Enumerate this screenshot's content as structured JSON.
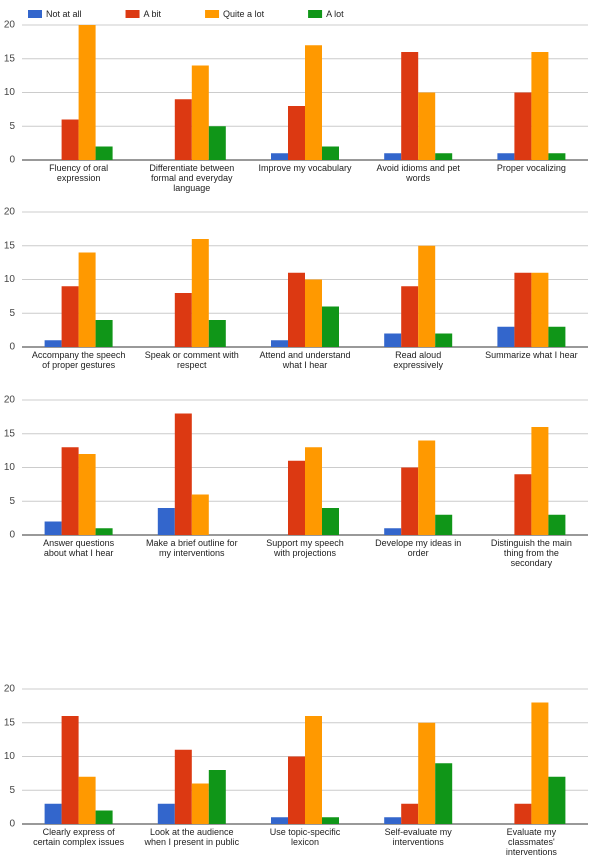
{
  "chart_data": [
    {
      "type": "bar",
      "categories": [
        "Fluency of oral expression",
        "Differentiate between formal and everyday language",
        "Improve my vocabulary",
        "Avoid idioms and pet words",
        "Proper vocalizing"
      ],
      "series": [
        {
          "name": "Not at all",
          "color": "#3366cc",
          "values": [
            0,
            0,
            1,
            1,
            1
          ]
        },
        {
          "name": "A bit",
          "color": "#dc3912",
          "values": [
            6,
            9,
            8,
            16,
            10
          ]
        },
        {
          "name": "Quite a lot",
          "color": "#ff9900",
          "values": [
            20,
            14,
            17,
            10,
            16
          ]
        },
        {
          "name": "A lot",
          "color": "#109618",
          "values": [
            2,
            5,
            2,
            1,
            1
          ]
        }
      ],
      "ylim": [
        0,
        20
      ],
      "yticks": [
        0,
        5,
        10,
        15,
        20
      ],
      "grid": true,
      "legend": "top"
    },
    {
      "type": "bar",
      "categories": [
        "Accompany the speech of proper gestures",
        "Speak or comment with respect",
        "Attend and understand what I hear",
        "Read aloud expressively",
        "Summarize what I hear"
      ],
      "series": [
        {
          "color": "#3366cc",
          "values": [
            1,
            0,
            1,
            2,
            3
          ]
        },
        {
          "color": "#dc3912",
          "values": [
            9,
            8,
            11,
            9,
            11
          ]
        },
        {
          "color": "#ff9900",
          "values": [
            14,
            16,
            10,
            15,
            11
          ]
        },
        {
          "color": "#109618",
          "values": [
            4,
            4,
            6,
            2,
            3
          ]
        }
      ],
      "ylim": [
        0,
        20
      ],
      "yticks": [
        0,
        5,
        10,
        15,
        20
      ],
      "grid": true
    },
    {
      "type": "bar",
      "categories": [
        "Answer questions about what I hear",
        "Make a brief outline for my interventions",
        "Support my speech with projections",
        "Develope my ideas in order",
        "Distinguish the main thing from the secondary"
      ],
      "series": [
        {
          "color": "#3366cc",
          "values": [
            2,
            4,
            0,
            1,
            0
          ]
        },
        {
          "color": "#dc3912",
          "values": [
            13,
            18,
            11,
            10,
            9
          ]
        },
        {
          "color": "#ff9900",
          "values": [
            12,
            6,
            13,
            14,
            16
          ]
        },
        {
          "color": "#109618",
          "values": [
            1,
            0,
            4,
            3,
            3
          ]
        }
      ],
      "ylim": [
        0,
        20
      ],
      "yticks": [
        0,
        5,
        10,
        15,
        20
      ],
      "grid": true
    },
    {
      "type": "bar",
      "categories": [
        "Clearly express of certain complex issues",
        "Look at the audience when I present in public",
        "Use topic-specific lexicon",
        "Self-evaluate my interventions",
        "Evaluate my classmates' interventions"
      ],
      "series": [
        {
          "color": "#3366cc",
          "values": [
            3,
            3,
            1,
            1,
            0
          ]
        },
        {
          "color": "#dc3912",
          "values": [
            16,
            11,
            10,
            3,
            3
          ]
        },
        {
          "color": "#ff9900",
          "values": [
            7,
            6,
            16,
            15,
            18
          ]
        },
        {
          "color": "#109618",
          "values": [
            2,
            8,
            1,
            9,
            7
          ]
        }
      ],
      "ylim": [
        0,
        20
      ],
      "yticks": [
        0,
        5,
        10,
        15,
        20
      ],
      "grid": true
    }
  ]
}
